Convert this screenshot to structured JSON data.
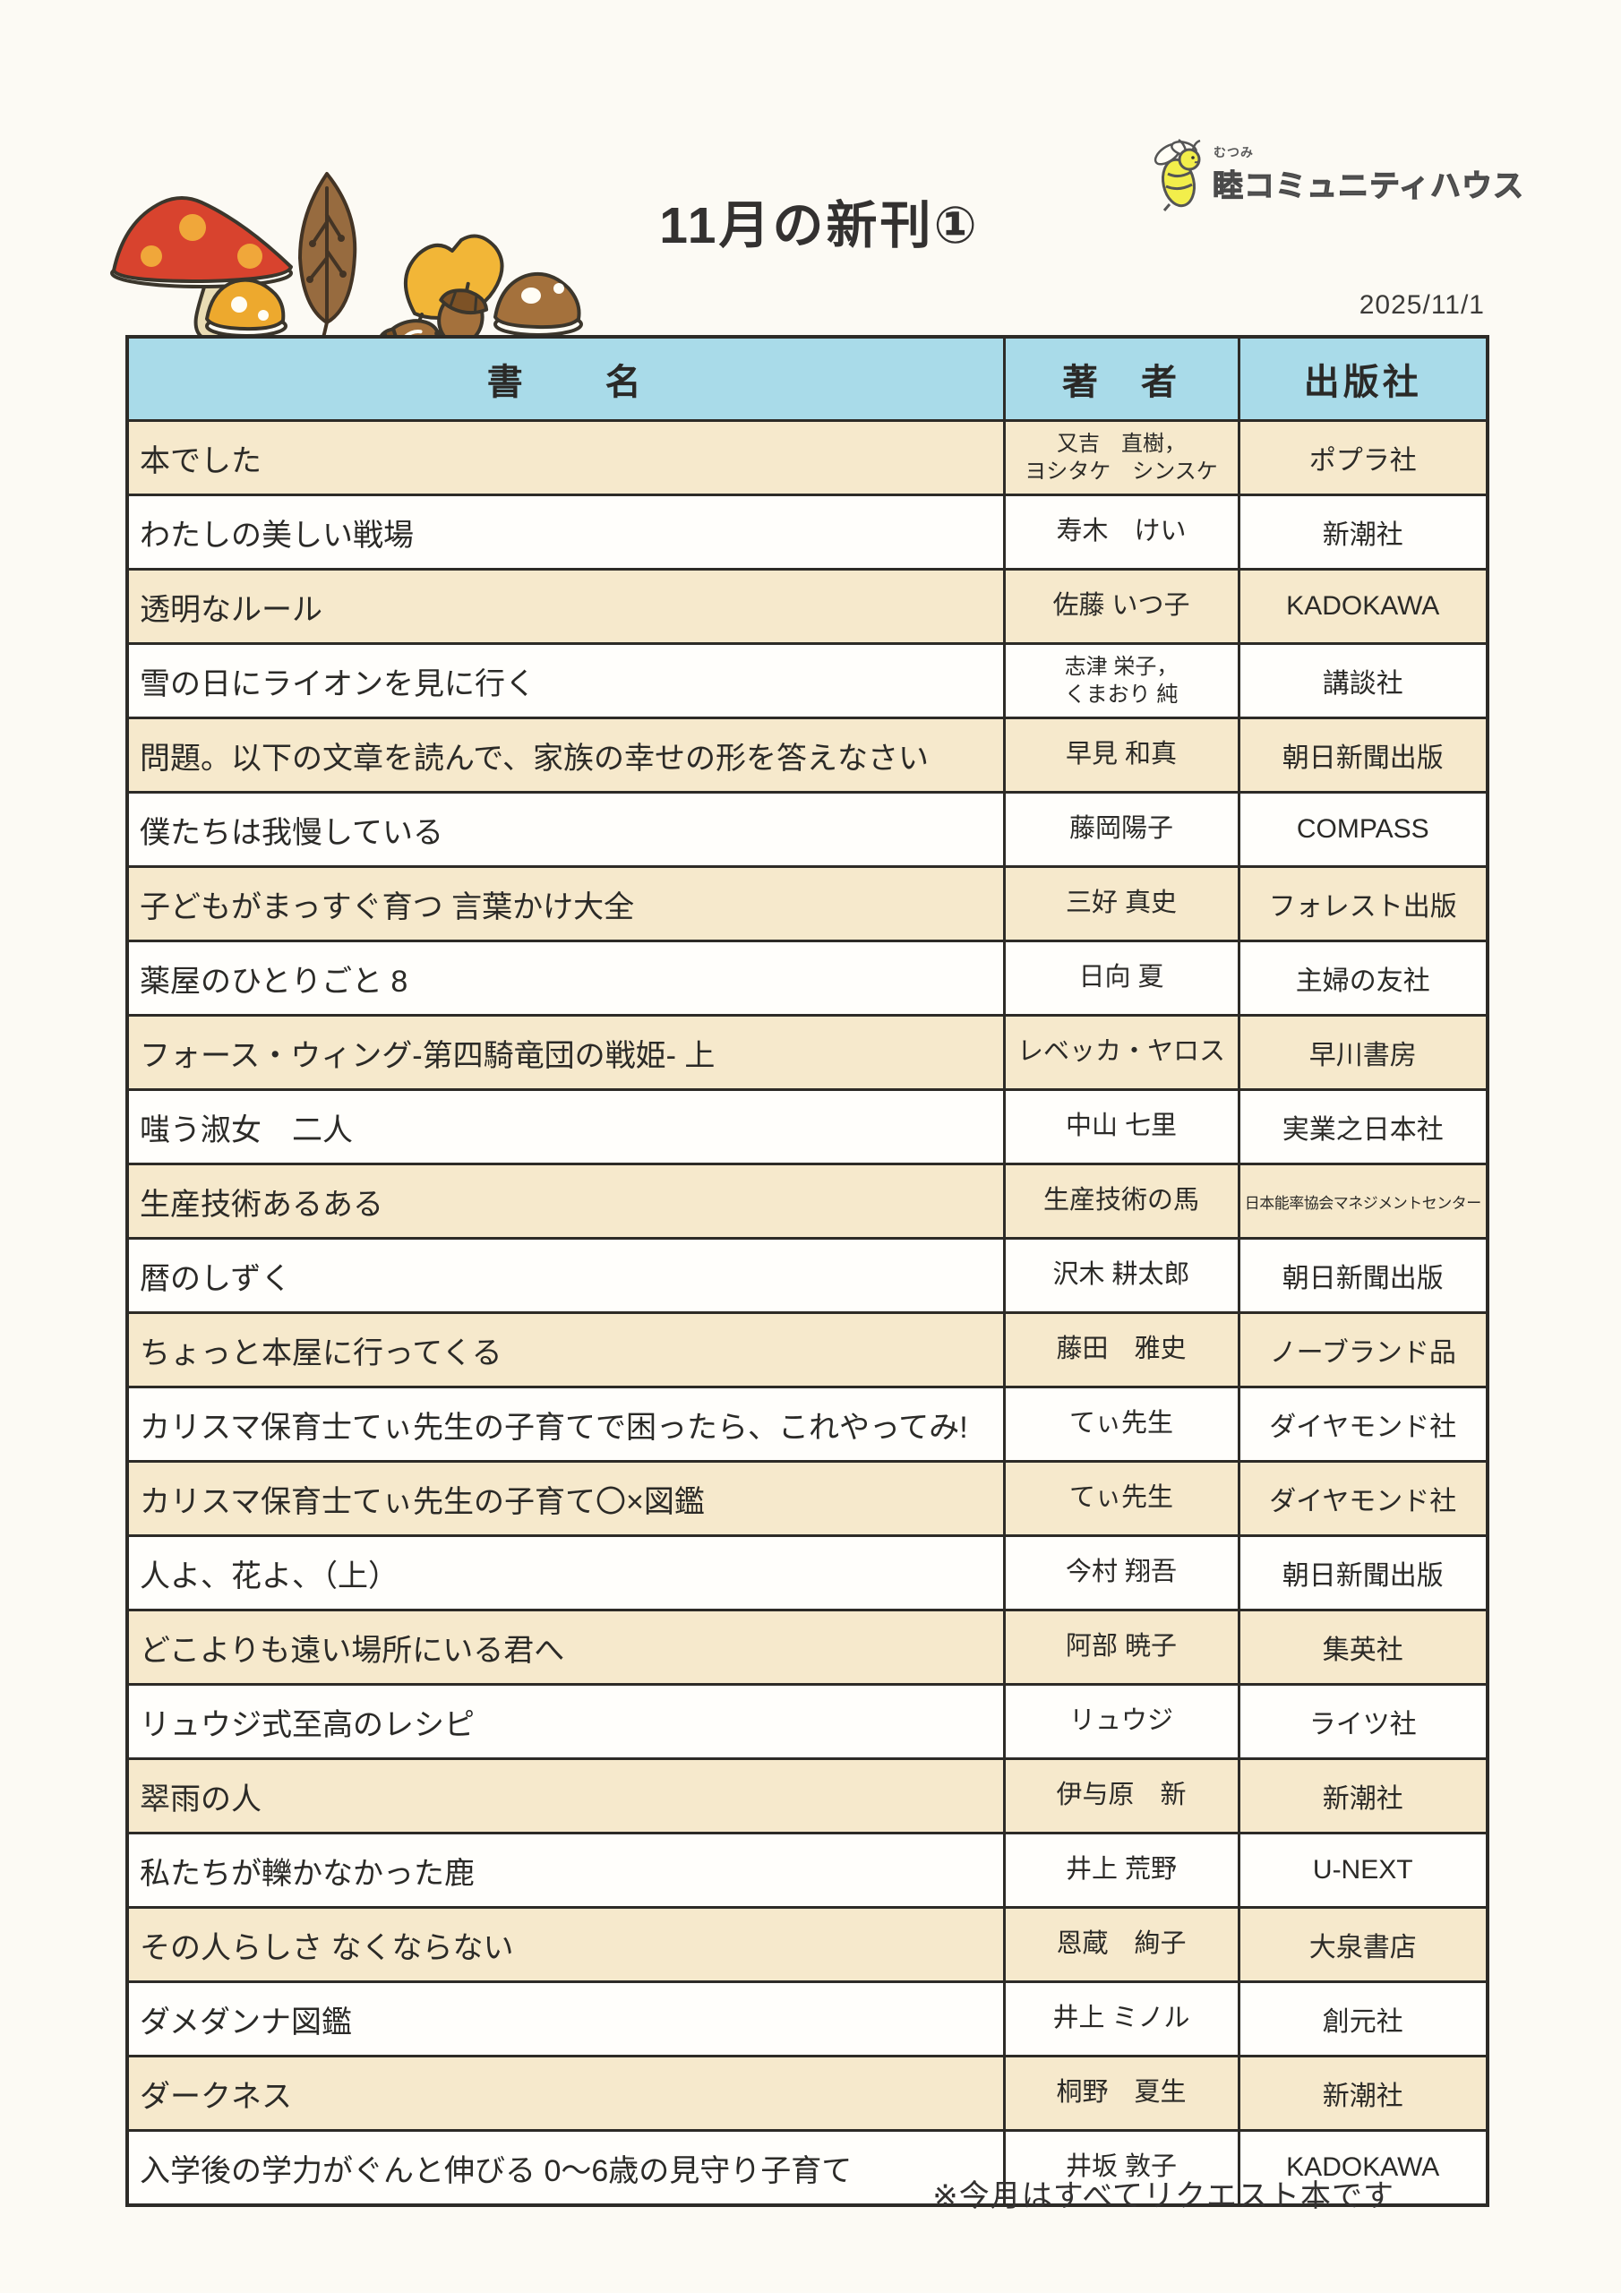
{
  "page": {
    "title": "11月の新刊①",
    "date": "2025/11/1",
    "logo_furigana": "むつみ",
    "logo_text": "睦コミュニティハウス",
    "footer_note": "※今月はすべてリクエスト本です"
  },
  "colors": {
    "header_blue": "#a9dbe9",
    "row_cream": "#f6e9cc",
    "row_white": "#fffefb",
    "border": "#2d2b27",
    "mushroom_red": "#d8432e",
    "autumn_gold": "#eda92e",
    "leaf_brown": "#976b3f"
  },
  "table": {
    "headers": {
      "book": "書　　名",
      "author": "著　者",
      "publisher": "出版社"
    },
    "rows": [
      {
        "book": "本でした",
        "author": "又吉　直樹，\nヨシタケ　シンスケ",
        "publisher": "ポプラ社"
      },
      {
        "book": "わたしの美しい戦場",
        "author": "寿木　けい",
        "publisher": "新潮社"
      },
      {
        "book": "透明なルール",
        "author": "佐藤 いつ子",
        "publisher": "KADOKAWA"
      },
      {
        "book": "雪の日にライオンを見に行く",
        "author": "志津 栄子，\nくまおり 純",
        "publisher": "講談社"
      },
      {
        "book": "問題。以下の文章を読んで、家族の幸せの形を答えなさい",
        "author": "早見 和真",
        "publisher": "朝日新聞出版"
      },
      {
        "book": "僕たちは我慢している",
        "author": "藤岡陽子",
        "publisher": "COMPASS"
      },
      {
        "book": "子どもがまっすぐ育つ 言葉かけ大全",
        "author": "三好 真史",
        "publisher": "フォレスト出版"
      },
      {
        "book": "薬屋のひとりごと 8",
        "author": "日向 夏",
        "publisher": "主婦の友社"
      },
      {
        "book": "フォース・ウィング-第四騎竜団の戦姫- 上",
        "author": "レベッカ・ヤロス",
        "publisher": "早川書房"
      },
      {
        "book": "嗤う淑女　二人",
        "author": "中山 七里",
        "publisher": "実業之日本社"
      },
      {
        "book": "生産技術あるある",
        "author": "生産技術の馬",
        "publisher": "日本能率協会マネジメントセンター"
      },
      {
        "book": "暦のしずく",
        "author": "沢木 耕太郎",
        "publisher": "朝日新聞出版"
      },
      {
        "book": "ちょっと本屋に行ってくる",
        "author": "藤田　雅史",
        "publisher": "ノーブランド品"
      },
      {
        "book": "カリスマ保育士てぃ先生の子育てで困ったら、これやってみ!",
        "author": "てぃ先生",
        "publisher": "ダイヤモンド社"
      },
      {
        "book": "カリスマ保育士てぃ先生の子育て〇×図鑑",
        "author": "てぃ先生",
        "publisher": "ダイヤモンド社"
      },
      {
        "book": "人よ、花よ、（上）",
        "author": "今村 翔吾",
        "publisher": "朝日新聞出版"
      },
      {
        "book": "どこよりも遠い場所にいる君へ",
        "author": "阿部 暁子",
        "publisher": "集英社"
      },
      {
        "book": "リュウジ式至高のレシピ",
        "author": "リュウジ",
        "publisher": "ライツ社"
      },
      {
        "book": "翠雨の人",
        "author": "伊与原　新",
        "publisher": "新潮社"
      },
      {
        "book": "私たちが轢かなかった鹿",
        "author": "井上 荒野",
        "publisher": "U-NEXT"
      },
      {
        "book": "その人らしさ なくならない",
        "author": "恩蔵　絢子",
        "publisher": "大泉書店"
      },
      {
        "book": "ダメダンナ図鑑",
        "author": "井上 ミノル",
        "publisher": "創元社"
      },
      {
        "book": "ダークネス",
        "author": "桐野　夏生",
        "publisher": "新潮社"
      },
      {
        "book": "入学後の学力がぐんと伸びる 0～6歳の見守り子育て",
        "author": "井坂 敦子",
        "publisher": "KADOKAWA"
      }
    ]
  }
}
